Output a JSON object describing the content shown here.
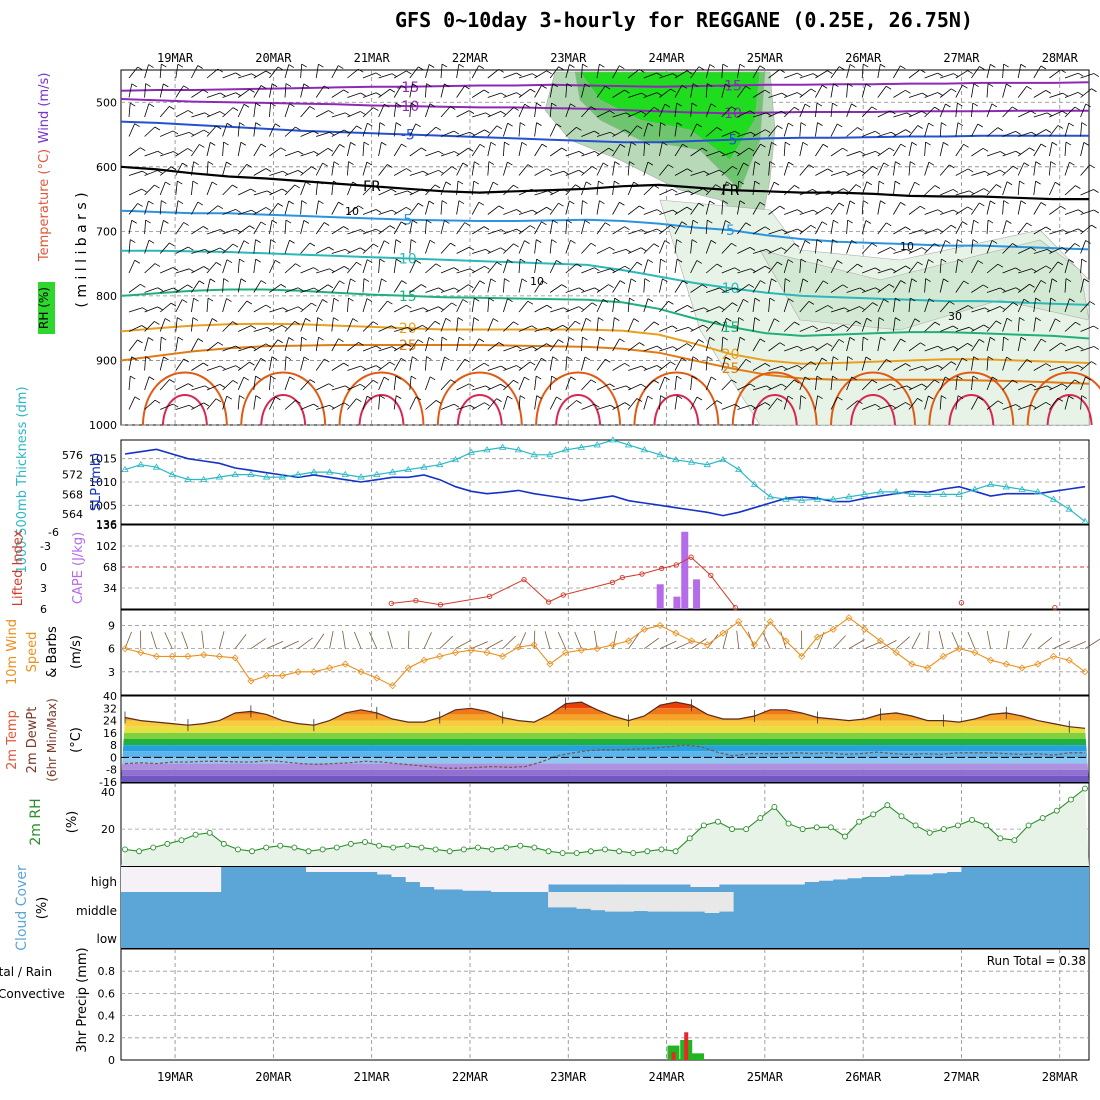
{
  "title": "GFS 0~10day 3-hourly for REGGANE (0.25E, 26.75N)",
  "colors": {
    "rh": "#2fd62f",
    "temperature": "#e0573a",
    "wind": "#7a33cc",
    "slp": "#1432c8",
    "thickness": "#2bb8c4",
    "lifted": "#d23a2a",
    "cape": "#b46ce8",
    "wind10": "#e9901e",
    "precip_total": "#21b521",
    "precip_conv": "#e82828",
    "cloud": "#5ba6d6",
    "cloud_clear": "#f5f1f7",
    "rh2m": "#2a8f2a"
  },
  "chart_data": [
    {
      "panel": "upper-air",
      "type": "contour",
      "dates": [
        "19MAR",
        "20MAR",
        "21MAR",
        "22MAR",
        "23MAR",
        "24MAR",
        "25MAR",
        "26MAR",
        "27MAR",
        "28MAR"
      ],
      "ylabel_parts": [
        "RH (%)",
        "Temperature (°C)",
        "Wind (m/s)",
        "( m i l l i b a r s )"
      ],
      "yticks": [
        500,
        600,
        700,
        800,
        900,
        1000
      ],
      "ylim": [
        450,
        1000
      ],
      "freeze_label": "FR",
      "rh_labels": [
        "10",
        "10",
        "10",
        "30"
      ],
      "isotherms": [
        {
          "label": "-15",
          "color": "#8c2ab5",
          "p": [
            482,
            481,
            481,
            480,
            479,
            478,
            477,
            476,
            476,
            475,
            474,
            474,
            473,
            474,
            475,
            476,
            475,
            474,
            473,
            473,
            472,
            472,
            471,
            471,
            470,
            470,
            470,
            469
          ]
        },
        {
          "label": "-10",
          "color": "#8c2ab5",
          "p": [
            495,
            497,
            499,
            500,
            501,
            502,
            503,
            505,
            506,
            507,
            508,
            508,
            509,
            510,
            512,
            514,
            516,
            517,
            516,
            515,
            515,
            515,
            514,
            514,
            514,
            513,
            513,
            513
          ]
        },
        {
          "label": "-5",
          "color": "#2550d0",
          "p": [
            530,
            532,
            535,
            538,
            541,
            544,
            546,
            548,
            550,
            552,
            554,
            556,
            558,
            560,
            562,
            562,
            560,
            558,
            556,
            555,
            555,
            554,
            553,
            553,
            552,
            552,
            552,
            552
          ]
        },
        {
          "label": "FR",
          "color": "#000000",
          "p": [
            600,
            604,
            610,
            615,
            618,
            622,
            626,
            630,
            634,
            638,
            640,
            638,
            636,
            634,
            630,
            628,
            632,
            636,
            638,
            640,
            640,
            642,
            645,
            646,
            646,
            648,
            650,
            650
          ]
        },
        {
          "label": "5",
          "color": "#2a94e0",
          "p": [
            668,
            670,
            672,
            672,
            674,
            676,
            678,
            680,
            682,
            683,
            684,
            684,
            683,
            682,
            684,
            688,
            694,
            698,
            706,
            712,
            716,
            718,
            720,
            722,
            722,
            724,
            726,
            728
          ]
        },
        {
          "label": "10",
          "color": "#2ab8b8",
          "p": [
            730,
            730,
            731,
            732,
            734,
            736,
            738,
            740,
            742,
            744,
            746,
            748,
            750,
            752,
            760,
            770,
            780,
            788,
            795,
            800,
            802,
            804,
            806,
            808,
            808,
            810,
            812,
            814
          ]
        },
        {
          "label": "15",
          "color": "#20b07a",
          "p": [
            800,
            796,
            792,
            790,
            790,
            792,
            795,
            798,
            800,
            802,
            803,
            804,
            805,
            806,
            810,
            820,
            835,
            848,
            858,
            862,
            860,
            858,
            856,
            856,
            858,
            860,
            862,
            866
          ]
        },
        {
          "label": "20",
          "color": "#e8a020",
          "p": [
            855,
            850,
            846,
            844,
            843,
            844,
            846,
            848,
            850,
            852,
            852,
            852,
            852,
            852,
            854,
            860,
            874,
            890,
            900,
            905,
            904,
            902,
            900,
            898,
            898,
            900,
            902,
            904
          ]
        },
        {
          "label": "25",
          "color": "#e07c16",
          "p": [
            900,
            893,
            886,
            881,
            878,
            877,
            876,
            876,
            876,
            876,
            876,
            877,
            878,
            879,
            882,
            888,
            900,
            912,
            922,
            928,
            930,
            930,
            930,
            930,
            931,
            932,
            934,
            936
          ]
        }
      ]
    },
    {
      "panel": "slp-thickness",
      "type": "line",
      "ylabel_left": "1000-500mb Thickness (dm)",
      "ylabel_right": "SLP (mb)",
      "left_ticks": [
        564,
        568,
        572,
        576
      ],
      "right_ticks": [
        1005,
        1010,
        1015
      ],
      "series": [
        {
          "name": "SLP",
          "axis": "SLP (mb)",
          "ylim": [
            1001,
            1019
          ],
          "values": [
            1016,
            1016.5,
            1017,
            1016,
            1015,
            1014.5,
            1014,
            1013,
            1012.5,
            1012,
            1011.5,
            1011,
            1011.5,
            1011,
            1010.5,
            1010,
            1010.5,
            1011,
            1011,
            1011.5,
            1010.5,
            1009,
            1008,
            1007.5,
            1007.8,
            1008.2,
            1007.5,
            1007,
            1006.5,
            1006,
            1006.5,
            1007,
            1006,
            1005.5,
            1005,
            1004.5,
            1004,
            1003.5,
            1002.8,
            1003.5,
            1004.5,
            1005.5,
            1006.5,
            1006.8,
            1006.5,
            1005.8,
            1005.8,
            1006.5,
            1007,
            1007.5,
            1008,
            1007.8,
            1008.5,
            1009,
            1008,
            1007,
            1007.5,
            1007.5,
            1007.5,
            1008,
            1008.5,
            1009
          ]
        },
        {
          "name": "Thickness",
          "axis": "1000-500mb Thickness (dm)",
          "ylim": [
            562,
            579
          ],
          "values": [
            573,
            574,
            573.5,
            572,
            571,
            571,
            571.5,
            572,
            572,
            571.5,
            571.5,
            572,
            572.5,
            572.5,
            572,
            571.5,
            572,
            572.5,
            573,
            573.5,
            574,
            575,
            576.5,
            577,
            577.5,
            577,
            576,
            576,
            577,
            577.5,
            578,
            579,
            578,
            577,
            576,
            575,
            574.5,
            574,
            575,
            573,
            570,
            567.5,
            567,
            566.8,
            567,
            567,
            567.5,
            568,
            568.5,
            568.5,
            568,
            568,
            568,
            568,
            569,
            570,
            569.5,
            569,
            568.5,
            567,
            565,
            562.5
          ]
        }
      ]
    },
    {
      "panel": "instability",
      "type": "bar+line",
      "ylabel_left": "Lifted Index",
      "ylabel_right": "CAPE (J/kg)",
      "left_ticks": [
        "-3",
        "0",
        "3",
        "6"
      ],
      "right_ticks": [
        "34",
        "68",
        "102",
        "136"
      ],
      "top_ticks": [
        "-6",
        "136"
      ],
      "series": [
        {
          "name": "Lifted Index",
          "ylim": [
            -6,
            6
          ],
          "values": [
            {
              "t": 2.75,
              "v": 5.2
            },
            {
              "t": 3.0,
              "v": 4.8
            },
            {
              "t": 3.25,
              "v": 5.4
            },
            {
              "t": 3.75,
              "v": 4.2
            },
            {
              "t": 4.1,
              "v": 1.8
            },
            {
              "t": 4.35,
              "v": 5.0
            },
            {
              "t": 4.5,
              "v": 4.0
            },
            {
              "t": 5.0,
              "v": 2.2
            },
            {
              "t": 5.1,
              "v": 1.5
            },
            {
              "t": 5.3,
              "v": 1.0
            },
            {
              "t": 5.5,
              "v": 0.2
            },
            {
              "t": 5.65,
              "v": -0.3
            },
            {
              "t": 5.8,
              "v": -1.4
            },
            {
              "t": 6.0,
              "v": 1.2
            },
            {
              "t": 6.25,
              "v": 5.8
            },
            {
              "t": 8.55,
              "v": 5.1
            },
            {
              "t": 9.5,
              "v": 5.8
            }
          ]
        },
        {
          "name": "CAPE",
          "ylim": [
            0,
            136
          ],
          "bars": [
            {
              "t": 5.48,
              "v": 40
            },
            {
              "t": 5.65,
              "v": 20
            },
            {
              "t": 5.73,
              "v": 125
            },
            {
              "t": 5.85,
              "v": 48
            }
          ]
        }
      ]
    },
    {
      "panel": "wind10m",
      "type": "line",
      "ylabel": "10m Wind Speed & Barbs (m/s)",
      "yticks": [
        3,
        6,
        9
      ],
      "ylim": [
        0,
        11
      ],
      "values": [
        6,
        5.5,
        5,
        5,
        5,
        5.2,
        5,
        4.8,
        1.8,
        2.5,
        2.5,
        3,
        3,
        3.5,
        4,
        3,
        2.2,
        1.2,
        3.5,
        4.5,
        5,
        5.5,
        5.8,
        5.5,
        5,
        6.2,
        6.5,
        4,
        5.5,
        5.8,
        6,
        6.5,
        7,
        8.5,
        9,
        8,
        7,
        6.5,
        8,
        9.5,
        6.5,
        9.5,
        7,
        5,
        7.5,
        8.5,
        10,
        8.5,
        7,
        5.5,
        4,
        3.5,
        5,
        6,
        5.5,
        4.5,
        4,
        3.5,
        4,
        5,
        4.5,
        3
      ]
    },
    {
      "panel": "temperature2m",
      "type": "area",
      "ylabel": "2m Temp 2m DewPt (6hr Min/Max) (°C)",
      "yticks": [
        "40",
        "32",
        "24",
        "16",
        "8",
        "0",
        "-8",
        "-16"
      ],
      "ylim": [
        -16,
        40
      ],
      "temp": [
        26,
        24,
        23,
        22,
        21,
        22,
        24,
        29,
        30,
        28,
        24,
        22,
        21,
        24,
        29,
        31,
        29,
        25,
        23,
        23,
        26,
        31,
        32,
        30,
        26,
        24,
        23,
        28,
        35,
        36,
        31,
        27,
        24,
        27,
        34,
        36,
        34,
        28,
        25,
        25,
        27,
        31,
        31,
        29,
        26,
        25,
        24,
        25,
        28,
        29,
        27,
        24,
        24,
        23,
        25,
        28,
        29,
        27,
        24,
        22,
        20,
        19
      ],
      "dewpoint": [
        -4,
        -3.5,
        -4,
        -3,
        -3,
        -2.5,
        -2.5,
        -3,
        -3,
        -2,
        -3,
        -4,
        -4.5,
        -4,
        -3.5,
        -2.5,
        -3,
        -4,
        -5,
        -6,
        -7,
        -7,
        -6.5,
        -6,
        -6.5,
        -6,
        -3,
        1,
        3,
        4.5,
        5,
        5,
        5.5,
        6,
        7,
        8,
        7,
        3.5,
        1,
        2.5,
        2.5,
        2.5,
        3,
        2.5,
        3,
        2,
        2.5,
        3.5,
        2.5,
        2,
        2.5,
        2,
        3,
        3,
        3,
        2.5,
        2,
        2.5,
        1.5,
        3,
        3
      ]
    },
    {
      "panel": "rh2m",
      "type": "area",
      "ylabel": "2m RH (%)",
      "yticks": [
        "20",
        "40"
      ],
      "ylim": [
        0,
        45
      ],
      "values": [
        9,
        8,
        10,
        12,
        14,
        17,
        18,
        12,
        9,
        8,
        10,
        11,
        10,
        8,
        9,
        10,
        12,
        13,
        11,
        10,
        11,
        10,
        9,
        8,
        9,
        10,
        9,
        10,
        11,
        10,
        8,
        7,
        7,
        8,
        9,
        8,
        7,
        8,
        9,
        8,
        15,
        22,
        24,
        20,
        20,
        26,
        32,
        23,
        20,
        21,
        21,
        16,
        24,
        28,
        33,
        27,
        22,
        18,
        20,
        22,
        25,
        22,
        15,
        14,
        22,
        26,
        30,
        36,
        42
      ]
    },
    {
      "panel": "cloud",
      "type": "area",
      "ylabel": "Cloud Cover (%)",
      "levels": [
        "high",
        "middle",
        "low"
      ],
      "high": [
        0,
        0,
        0,
        0,
        0,
        0,
        0,
        100,
        100,
        100,
        100,
        100,
        100,
        80,
        80,
        80,
        80,
        80,
        70,
        60,
        40,
        20,
        10,
        10,
        5,
        5,
        0,
        0,
        0,
        0,
        30,
        30,
        30,
        30,
        30,
        30,
        30,
        30,
        30,
        30,
        20,
        20,
        30,
        30,
        30,
        30,
        30,
        30,
        40,
        45,
        50,
        55,
        60,
        60,
        65,
        70,
        70,
        75,
        80,
        100,
        100,
        100,
        100,
        100,
        100,
        100,
        100,
        100
      ],
      "middle": [
        100,
        100,
        100,
        100,
        100,
        100,
        100,
        100,
        100,
        100,
        100,
        100,
        100,
        100,
        100,
        100,
        100,
        100,
        100,
        100,
        100,
        100,
        100,
        100,
        100,
        100,
        100,
        100,
        100,
        100,
        45,
        45,
        40,
        35,
        30,
        30,
        32,
        30,
        30,
        30,
        30,
        25,
        30,
        100,
        100,
        100,
        100,
        100,
        100,
        100,
        100,
        100,
        100,
        100,
        100,
        100,
        100,
        100,
        100,
        100,
        100,
        100,
        100,
        100,
        100,
        100,
        100,
        100
      ]
    },
    {
      "panel": "precip",
      "type": "bar",
      "ylabel": "3hr Precip (mm)",
      "legend": [
        "Total / Rain",
        "Convective"
      ],
      "run_total": "Run Total = 0.38",
      "yticks": [
        "0",
        "0.2",
        "0.4",
        "0.6",
        "0.8"
      ],
      "ylim": [
        0,
        1.0
      ],
      "bars": [
        {
          "t": 5.62,
          "total": 0.13,
          "conv": 0.07
        },
        {
          "t": 5.75,
          "total": 0.18,
          "conv": 0.25
        },
        {
          "t": 5.87,
          "total": 0.06,
          "conv": 0.0
        }
      ]
    }
  ]
}
